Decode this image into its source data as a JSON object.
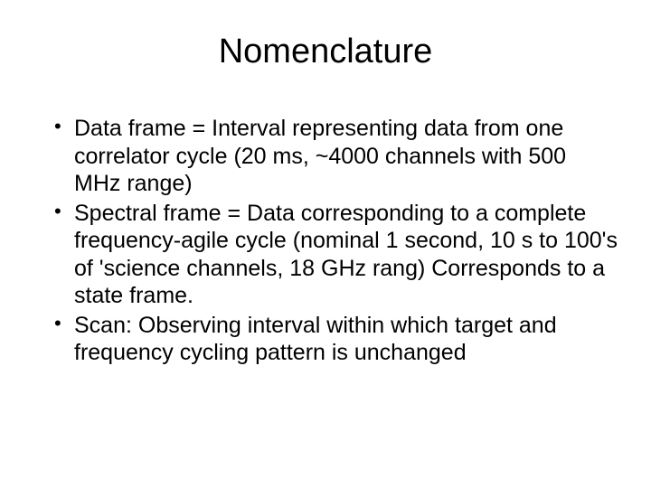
{
  "slide": {
    "title": "Nomenclature",
    "bullets": [
      "Data frame = Interval representing data from one correlator cycle (20 ms, ~4000 channels with 500 MHz range)",
      "Spectral frame = Data corresponding to a complete frequency-agile cycle (nominal 1 second, 10 s to 100's of 'science channels, 18 GHz rang)  Corresponds to a state frame.",
      "Scan: Observing interval within which target and frequency cycling pattern is unchanged"
    ]
  },
  "style": {
    "background_color": "#ffffff",
    "text_color": "#000000",
    "title_fontsize": 38,
    "title_fontweight": 400,
    "body_fontsize": 25,
    "font_family": "Arial",
    "bullet_marker": "•"
  }
}
